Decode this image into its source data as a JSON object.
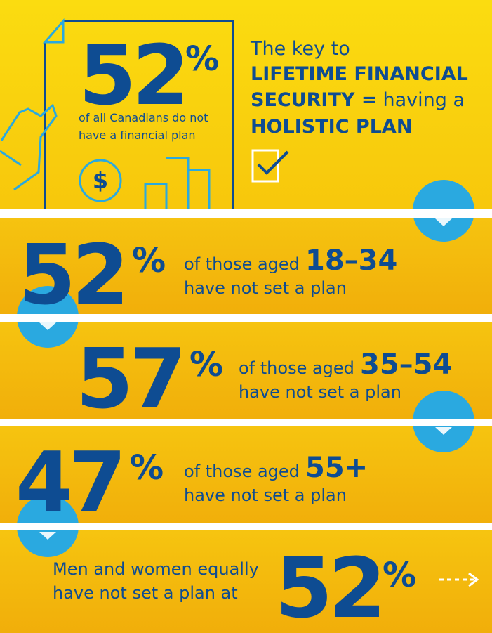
{
  "header": {
    "stat": {
      "number": "52",
      "sign": "%",
      "caption_line1": "of all Canadians do not",
      "caption_line2": "have a financial plan"
    },
    "currency_icon": "$",
    "headline": {
      "line1": "The key to",
      "line2": "LIFETIME FINANCIAL",
      "line3_bold": "SECURITY =",
      "line3_rest": "having a",
      "line4": "HOLISTIC PLAN"
    }
  },
  "panels": [
    {
      "number": "52",
      "sign": "%",
      "text_prefix": "of those aged",
      "age": "18–34",
      "text_line2": "have not set a plan"
    },
    {
      "number": "57",
      "sign": "%",
      "text_prefix": "of those aged",
      "age": "35–54",
      "text_line2": "have not set a plan"
    },
    {
      "number": "47",
      "sign": "%",
      "text_prefix": "of those aged",
      "age": "55+",
      "text_line2": "have not set a plan"
    }
  ],
  "footer": {
    "line1": "Men and women equally",
    "line2": "have not set a plan at",
    "number": "52",
    "sign": "%"
  }
}
